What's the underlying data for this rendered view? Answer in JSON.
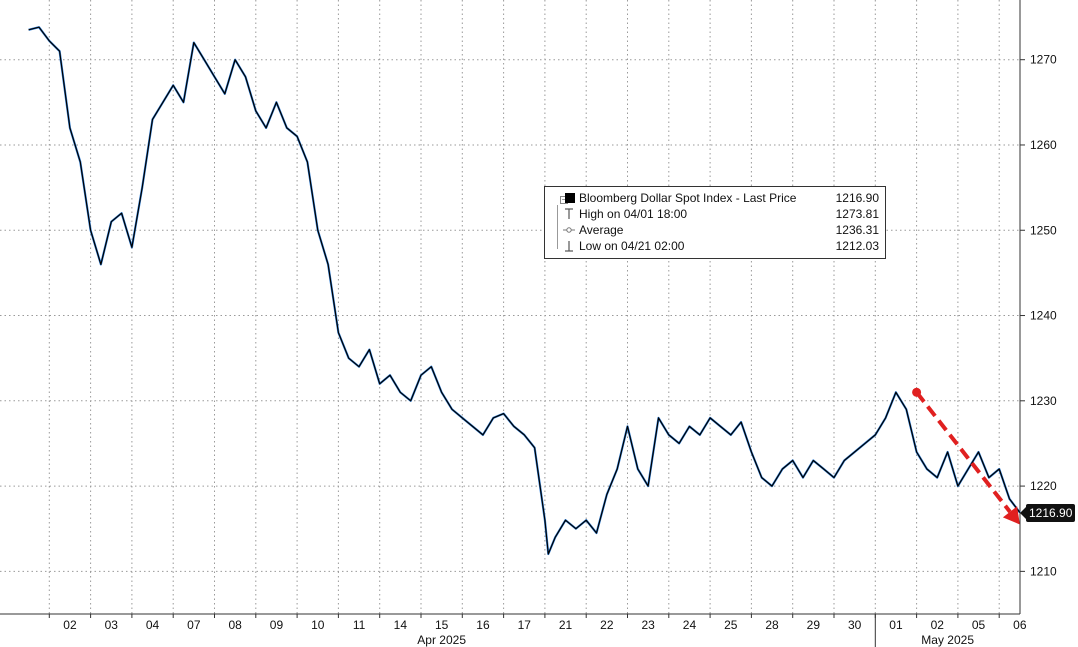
{
  "chart_data": {
    "type": "line",
    "title": "",
    "xlabel": "",
    "ylabel": "",
    "ylim": [
      1205,
      1277
    ],
    "y_ticks": [
      1210,
      1220,
      1230,
      1240,
      1250,
      1260,
      1270
    ],
    "y_tick_labels": [
      "1210",
      "1220",
      "1230",
      "1240",
      "1250",
      "1260",
      "1270"
    ],
    "grid": true,
    "y_axis_position": "right",
    "legend_position": "center-right",
    "x_ticks": [
      "02",
      "03",
      "04",
      "07",
      "08",
      "09",
      "10",
      "11",
      "14",
      "15",
      "16",
      "17",
      "21",
      "22",
      "23",
      "24",
      "25",
      "28",
      "29",
      "30",
      "01",
      "02",
      "05",
      "06"
    ],
    "x_tick_days": [
      "2025-04-02",
      "2025-04-03",
      "2025-04-04",
      "2025-04-07",
      "2025-04-08",
      "2025-04-09",
      "2025-04-10",
      "2025-04-11",
      "2025-04-14",
      "2025-04-15",
      "2025-04-16",
      "2025-04-17",
      "2025-04-21",
      "2025-04-22",
      "2025-04-23",
      "2025-04-24",
      "2025-04-25",
      "2025-04-28",
      "2025-04-29",
      "2025-04-30",
      "2025-05-01",
      "2025-05-02",
      "2025-05-05",
      "2025-05-06"
    ],
    "months": [
      {
        "label": "Apr 2025",
        "from": "2025-04-01",
        "to": "2025-04-30"
      },
      {
        "label": "May 2025",
        "from": "2025-05-01",
        "to": "2025-05-06"
      }
    ],
    "series": [
      {
        "name": "Bloomberg Dollar Spot Index - Last Price",
        "color": "#000000",
        "x": [
          "2025-04-01 12:00",
          "2025-04-01 18:00",
          "2025-04-02 00:00",
          "2025-04-02 06:00",
          "2025-04-02 12:00",
          "2025-04-02 18:00",
          "2025-04-03 00:00",
          "2025-04-03 06:00",
          "2025-04-03 12:00",
          "2025-04-03 18:00",
          "2025-04-04 00:00",
          "2025-04-04 06:00",
          "2025-04-04 12:00",
          "2025-04-04 18:00",
          "2025-04-07 00:00",
          "2025-04-07 06:00",
          "2025-04-07 12:00",
          "2025-04-07 18:00",
          "2025-04-08 00:00",
          "2025-04-08 06:00",
          "2025-04-08 12:00",
          "2025-04-08 18:00",
          "2025-04-09 00:00",
          "2025-04-09 06:00",
          "2025-04-09 12:00",
          "2025-04-09 18:00",
          "2025-04-10 00:00",
          "2025-04-10 06:00",
          "2025-04-10 12:00",
          "2025-04-10 18:00",
          "2025-04-11 00:00",
          "2025-04-11 06:00",
          "2025-04-11 12:00",
          "2025-04-11 18:00",
          "2025-04-14 00:00",
          "2025-04-14 06:00",
          "2025-04-14 12:00",
          "2025-04-14 18:00",
          "2025-04-15 00:00",
          "2025-04-15 06:00",
          "2025-04-15 12:00",
          "2025-04-15 18:00",
          "2025-04-16 00:00",
          "2025-04-16 06:00",
          "2025-04-16 12:00",
          "2025-04-16 18:00",
          "2025-04-17 00:00",
          "2025-04-17 06:00",
          "2025-04-17 12:00",
          "2025-04-17 18:00",
          "2025-04-21 00:00",
          "2025-04-21 02:00",
          "2025-04-21 06:00",
          "2025-04-21 12:00",
          "2025-04-21 18:00",
          "2025-04-22 00:00",
          "2025-04-22 06:00",
          "2025-04-22 12:00",
          "2025-04-22 18:00",
          "2025-04-23 00:00",
          "2025-04-23 06:00",
          "2025-04-23 12:00",
          "2025-04-23 18:00",
          "2025-04-24 00:00",
          "2025-04-24 06:00",
          "2025-04-24 12:00",
          "2025-04-24 18:00",
          "2025-04-25 00:00",
          "2025-04-25 06:00",
          "2025-04-25 12:00",
          "2025-04-25 18:00",
          "2025-04-28 00:00",
          "2025-04-28 06:00",
          "2025-04-28 12:00",
          "2025-04-28 18:00",
          "2025-04-29 00:00",
          "2025-04-29 06:00",
          "2025-04-29 12:00",
          "2025-04-29 18:00",
          "2025-04-30 00:00",
          "2025-04-30 06:00",
          "2025-04-30 12:00",
          "2025-04-30 18:00",
          "2025-05-01 00:00",
          "2025-05-01 06:00",
          "2025-05-01 12:00",
          "2025-05-01 18:00",
          "2025-05-02 00:00",
          "2025-05-02 06:00",
          "2025-05-02 12:00",
          "2025-05-02 18:00",
          "2025-05-05 00:00",
          "2025-05-05 06:00",
          "2025-05-05 12:00",
          "2025-05-05 18:00",
          "2025-05-06 00:00",
          "2025-05-06 06:00",
          "2025-05-06 12:00"
        ],
        "values": [
          1273.5,
          1273.81,
          1272.2,
          1271.0,
          1262.0,
          1258.0,
          1250.0,
          1246.0,
          1251.0,
          1252.0,
          1248.0,
          1255.0,
          1263.0,
          1265.0,
          1267.0,
          1265.0,
          1272.0,
          1270.0,
          1268.0,
          1266.0,
          1270.0,
          1268.0,
          1264.0,
          1262.0,
          1265.0,
          1262.0,
          1261.0,
          1258.0,
          1250.0,
          1246.0,
          1238.0,
          1235.0,
          1234.0,
          1236.0,
          1232.0,
          1233.0,
          1231.0,
          1230.0,
          1233.0,
          1234.0,
          1231.0,
          1229.0,
          1228.0,
          1227.0,
          1226.0,
          1228.0,
          1228.5,
          1227.0,
          1226.0,
          1224.5,
          1216.0,
          1212.03,
          1214.0,
          1216.0,
          1215.0,
          1216.0,
          1214.5,
          1219.0,
          1222.0,
          1227.0,
          1222.0,
          1220.0,
          1228.0,
          1226.0,
          1225.0,
          1227.0,
          1226.0,
          1228.0,
          1227.0,
          1226.0,
          1227.5,
          1224.0,
          1221.0,
          1220.0,
          1222.0,
          1223.0,
          1221.0,
          1223.0,
          1222.0,
          1221.0,
          1223.0,
          1224.0,
          1225.0,
          1226.0,
          1228.0,
          1231.0,
          1229.0,
          1224.0,
          1222.0,
          1221.0,
          1224.0,
          1220.0,
          1222.0,
          1224.0,
          1221.0,
          1222.0,
          1218.5,
          1216.9
        ]
      }
    ],
    "legend": {
      "title": "Bloomberg Dollar Spot Index - Last Price",
      "title_value": "1216.90",
      "high_label": "High on 04/01 18:00",
      "high_value": "1273.81",
      "average_label": "Average",
      "average_value": "1236.31",
      "low_label": "Low on 04/21 02:00",
      "low_value": "1212.03"
    },
    "last_price_label": "1216.90",
    "annotations": [
      {
        "type": "arrow",
        "color": "#e02020",
        "style": "dashed",
        "from": {
          "x": "2025-05-02 00:00",
          "y": 1231
        },
        "to": {
          "x": "2025-05-06 12:00",
          "y": 1215.5
        }
      }
    ]
  }
}
